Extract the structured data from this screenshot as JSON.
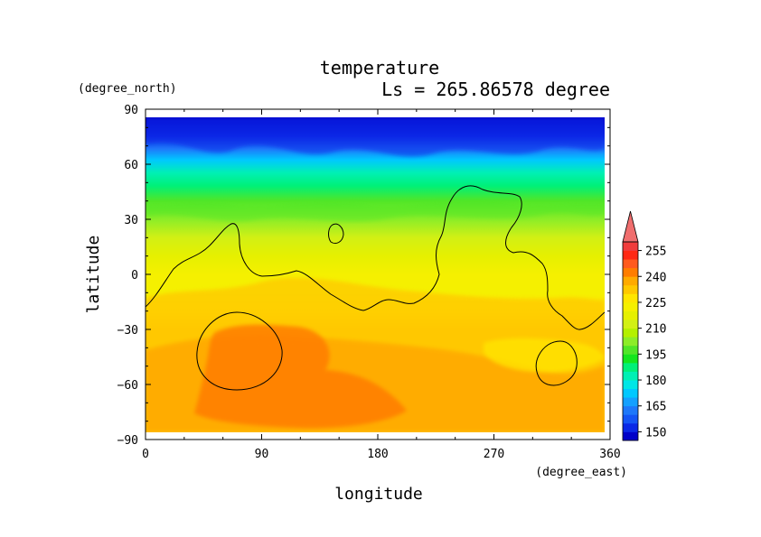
{
  "chart_data": {
    "type": "heatmap",
    "title": "temperature",
    "subtitle": "Ls = 265.86578 degree",
    "xlabel": "longitude",
    "ylabel": "latitude",
    "x_units": "(degree_east)",
    "y_units": "(degree_north)",
    "xlim": [
      0,
      360
    ],
    "ylim": [
      -90,
      90
    ],
    "x_ticks": [
      0,
      90,
      180,
      270,
      360
    ],
    "y_ticks": [
      -90,
      -60,
      -30,
      0,
      30,
      60,
      90
    ],
    "x_tick_labels": [
      "0",
      "90",
      "180",
      "270",
      "360"
    ],
    "y_tick_labels": [
      "−90",
      "−60",
      "−30",
      "0",
      "30",
      "60",
      "90"
    ],
    "colorbar": {
      "labels": [
        "150",
        "165",
        "180",
        "195",
        "210",
        "225",
        "240",
        "255"
      ],
      "levels": [
        145,
        150,
        155,
        160,
        165,
        170,
        175,
        180,
        185,
        190,
        195,
        200,
        205,
        210,
        215,
        220,
        225,
        230,
        235,
        240,
        245,
        250,
        255,
        260
      ],
      "colors": [
        "#0000c8",
        "#0a28e6",
        "#1455f5",
        "#1e78fa",
        "#14a0ff",
        "#00c8ff",
        "#00e6e6",
        "#00f0b4",
        "#00f078",
        "#14e61e",
        "#50e628",
        "#8ced28",
        "#b4f000",
        "#d2f014",
        "#e6f000",
        "#f5f000",
        "#ffe600",
        "#ffc800",
        "#ffaa00",
        "#ff7d00",
        "#ff5a1e",
        "#ff2814",
        "#f03c3c",
        "#f06e6e"
      ]
    },
    "bands_by_latitude": [
      {
        "lat": 85,
        "value": 148
      },
      {
        "lat": 75,
        "value": 152
      },
      {
        "lat": 68,
        "value": 160
      },
      {
        "lat": 62,
        "value": 170
      },
      {
        "lat": 55,
        "value": 180
      },
      {
        "lat": 48,
        "value": 188
      },
      {
        "lat": 40,
        "value": 195
      },
      {
        "lat": 30,
        "value": 203
      },
      {
        "lat": 20,
        "value": 212
      },
      {
        "lat": 10,
        "value": 217
      },
      {
        "lat": 0,
        "value": 220
      },
      {
        "lat": -10,
        "value": 224
      },
      {
        "lat": -20,
        "value": 228
      },
      {
        "lat": -30,
        "value": 231
      },
      {
        "lat": -45,
        "value": 233
      },
      {
        "lat": -60,
        "value": 233
      },
      {
        "lat": -75,
        "value": 232
      },
      {
        "lat": -85,
        "value": 230
      }
    ],
    "warm_region": {
      "lon_range": [
        30,
        210
      ],
      "lat_range": [
        -85,
        -25
      ],
      "value": 238
    },
    "contour_value": 220
  }
}
